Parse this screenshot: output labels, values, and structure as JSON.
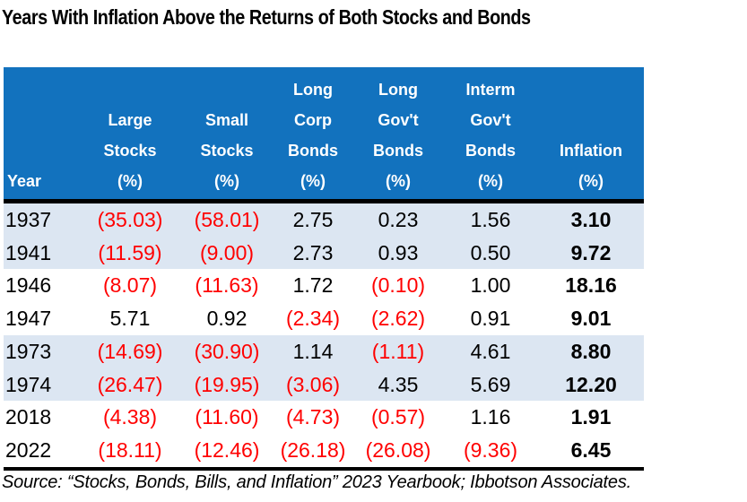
{
  "title": "Years With Inflation Above the Returns of Both Stocks and Bonds",
  "source": "Source: “Stocks, Bonds, Bills, and Inflation” 2023 Yearbook; Ibbotson Associates.",
  "colors": {
    "header_bg": "#1272BE",
    "band_bg": "#DCE6F2",
    "negative_text": "#FF0000",
    "body_text": "#000000",
    "header_text": "#FFFFFF"
  },
  "chart_data": {
    "type": "table",
    "title": "Years With Inflation Above the Returns of Both Stocks and Bonds",
    "notes": "Values in parentheses are negative returns, shown in red; Inflation column is bold; rows banded light blue in pairs",
    "columns": [
      {
        "key": "year",
        "label": "Year",
        "lines": [
          "Year"
        ]
      },
      {
        "key": "large_stocks",
        "label": "Large Stocks (%)",
        "lines": [
          "Large",
          "Stocks",
          "(%)"
        ]
      },
      {
        "key": "small_stocks",
        "label": "Small Stocks (%)",
        "lines": [
          "Small",
          "Stocks",
          "(%)"
        ]
      },
      {
        "key": "long_corp_bonds",
        "label": "Long Corp Bonds (%)",
        "lines": [
          "Long",
          "Corp",
          "Bonds",
          "(%)"
        ]
      },
      {
        "key": "long_govt_bonds",
        "label": "Long Gov't Bonds (%)",
        "lines": [
          "Long",
          "Gov't",
          "Bonds",
          "(%)"
        ]
      },
      {
        "key": "interm_govt_bonds",
        "label": "Interm Gov't Bonds (%)",
        "lines": [
          "Interm",
          "Gov't",
          "Bonds",
          "(%)"
        ]
      },
      {
        "key": "inflation",
        "label": "Inflation (%)",
        "lines": [
          "Inflation",
          "(%)"
        ]
      }
    ],
    "rows": [
      {
        "year": "1937",
        "values": [
          "(35.03)",
          "(58.01)",
          "2.75",
          "0.23",
          "1.56",
          "3.10"
        ]
      },
      {
        "year": "1941",
        "values": [
          "(11.59)",
          "(9.00)",
          "2.73",
          "0.93",
          "0.50",
          "9.72"
        ]
      },
      {
        "year": "1946",
        "values": [
          "(8.07)",
          "(11.63)",
          "1.72",
          "(0.10)",
          "1.00",
          "18.16"
        ]
      },
      {
        "year": "1947",
        "values": [
          "5.71",
          "0.92",
          "(2.34)",
          "(2.62)",
          "0.91",
          "9.01"
        ]
      },
      {
        "year": "1973",
        "values": [
          "(14.69)",
          "(30.90)",
          "1.14",
          "(1.11)",
          "4.61",
          "8.80"
        ]
      },
      {
        "year": "1974",
        "values": [
          "(26.47)",
          "(19.95)",
          "(3.06)",
          "4.35",
          "5.69",
          "12.20"
        ]
      },
      {
        "year": "2018",
        "values": [
          "(4.38)",
          "(11.60)",
          "(4.73)",
          "(0.57)",
          "1.16",
          "1.91"
        ]
      },
      {
        "year": "2022",
        "values": [
          "(18.11)",
          "(12.46)",
          "(26.18)",
          "(26.08)",
          "(9.36)",
          "6.45"
        ]
      }
    ]
  }
}
